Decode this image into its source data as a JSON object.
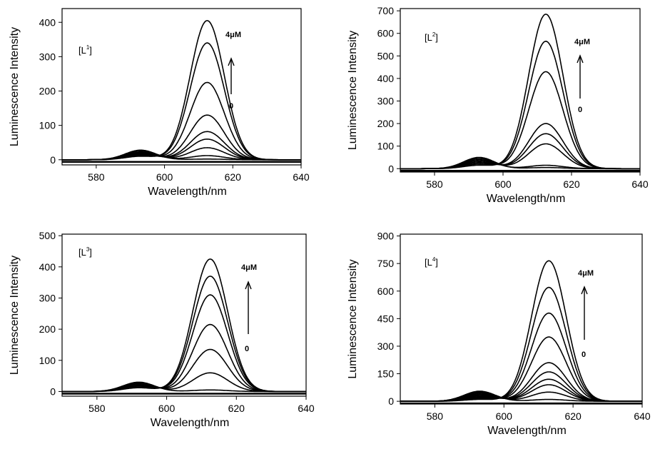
{
  "chart_data": [
    {
      "type": "line",
      "panel_label": {
        "base": "[L",
        "sup": "1",
        "close": "]"
      },
      "xlabel": "Wavelength/nm",
      "ylabel": "Luminescence Intensity",
      "xlim": [
        570,
        640
      ],
      "ylim": [
        -15,
        440
      ],
      "x_ticks": [
        580,
        600,
        620,
        640
      ],
      "y_ticks": [
        0,
        100,
        200,
        300,
        400
      ],
      "arrow": {
        "top": "4μM",
        "bottom": "0"
      },
      "peak_wavelength": 612.5,
      "peak_width": 5.0,
      "shoulder_wavelength": 593,
      "shoulder_width": 4.5,
      "series": [
        {
          "peak": 2,
          "shoulder": 28
        },
        {
          "peak": 12,
          "shoulder": 25
        },
        {
          "peak": 35,
          "shoulder": 22
        },
        {
          "peak": 60,
          "shoulder": 20
        },
        {
          "peak": 82,
          "shoulder": 18
        },
        {
          "peak": 130,
          "shoulder": 16
        },
        {
          "peak": 225,
          "shoulder": 14
        },
        {
          "peak": 340,
          "shoulder": 12
        },
        {
          "peak": 405,
          "shoulder": 10
        }
      ]
    },
    {
      "type": "line",
      "panel_label": {
        "base": "[L",
        "sup": "2",
        "close": "]"
      },
      "xlabel": "Wavelength/nm",
      "ylabel": "Luminescence Intensity",
      "xlim": [
        570,
        640
      ],
      "ylim": [
        -15,
        710
      ],
      "x_ticks": [
        580,
        600,
        620,
        640
      ],
      "y_ticks": [
        0,
        100,
        200,
        300,
        400,
        500,
        600,
        700
      ],
      "arrow": {
        "top": "4μM",
        "bottom": "0"
      },
      "peak_wavelength": 612.5,
      "peak_width": 5.0,
      "shoulder_wavelength": 593,
      "shoulder_width": 4.5,
      "series": [
        {
          "peak": 5,
          "shoulder": 50
        },
        {
          "peak": 15,
          "shoulder": 45
        },
        {
          "peak": 110,
          "shoulder": 40
        },
        {
          "peak": 155,
          "shoulder": 35
        },
        {
          "peak": 200,
          "shoulder": 30
        },
        {
          "peak": 430,
          "shoulder": 25
        },
        {
          "peak": 565,
          "shoulder": 20
        },
        {
          "peak": 685,
          "shoulder": 15
        }
      ]
    },
    {
      "type": "line",
      "panel_label": {
        "base": "[L",
        "sup": "3",
        "close": "]"
      },
      "xlabel": "Wavelength/nm",
      "ylabel": "Luminescence Intensity",
      "xlim": [
        570,
        640
      ],
      "ylim": [
        -15,
        505
      ],
      "x_ticks": [
        580,
        600,
        620,
        640
      ],
      "y_ticks": [
        0,
        100,
        200,
        300,
        400,
        500
      ],
      "arrow": {
        "top": "4μM",
        "bottom": "0"
      },
      "peak_wavelength": 612.5,
      "peak_width": 5.0,
      "shoulder_wavelength": 592,
      "shoulder_width": 4.5,
      "series": [
        {
          "peak": 5,
          "shoulder": 30
        },
        {
          "peak": 60,
          "shoulder": 27
        },
        {
          "peak": 135,
          "shoulder": 24
        },
        {
          "peak": 215,
          "shoulder": 21
        },
        {
          "peak": 310,
          "shoulder": 18
        },
        {
          "peak": 370,
          "shoulder": 15
        },
        {
          "peak": 425,
          "shoulder": 12
        }
      ]
    },
    {
      "type": "line",
      "panel_label": {
        "base": "[L",
        "sup": "4",
        "close": "]"
      },
      "xlabel": "Wavelength/nm",
      "ylabel": "Luminescence Intensity",
      "xlim": [
        570,
        640
      ],
      "ylim": [
        -15,
        910
      ],
      "x_ticks": [
        580,
        600,
        620,
        640
      ],
      "y_ticks": [
        0,
        150,
        300,
        450,
        600,
        750,
        900
      ],
      "arrow": {
        "top": "4μM",
        "bottom": "0"
      },
      "peak_wavelength": 613,
      "peak_width": 5.0,
      "shoulder_wavelength": 593,
      "shoulder_width": 4.5,
      "series": [
        {
          "peak": 10,
          "shoulder": 55
        },
        {
          "peak": 50,
          "shoulder": 50
        },
        {
          "peak": 90,
          "shoulder": 45
        },
        {
          "peak": 120,
          "shoulder": 40
        },
        {
          "peak": 160,
          "shoulder": 35
        },
        {
          "peak": 210,
          "shoulder": 30
        },
        {
          "peak": 350,
          "shoulder": 25
        },
        {
          "peak": 480,
          "shoulder": 20
        },
        {
          "peak": 620,
          "shoulder": 15
        },
        {
          "peak": 765,
          "shoulder": 10
        }
      ]
    }
  ]
}
